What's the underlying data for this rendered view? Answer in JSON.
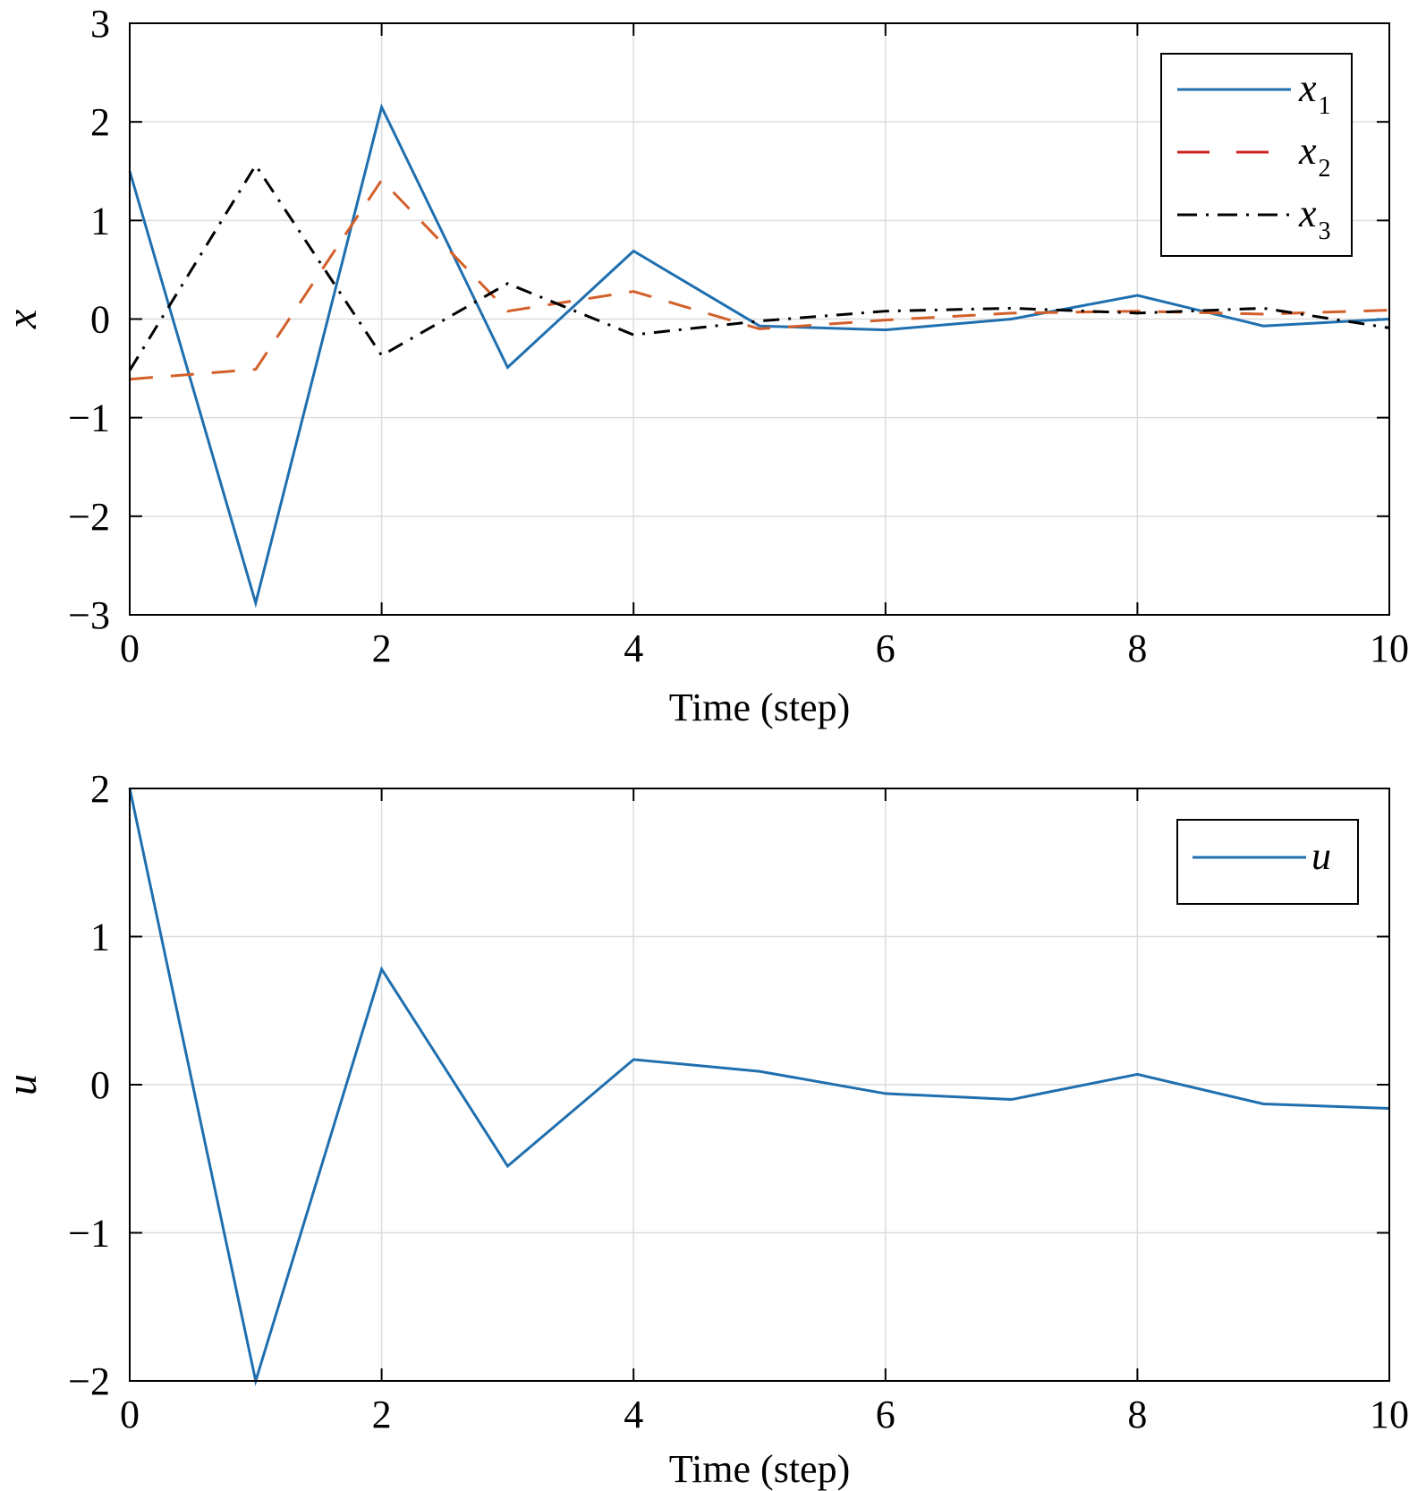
{
  "colors": {
    "x1": "#1f6faf",
    "x2": "#d35f2a",
    "x2_legend": "#cc2222",
    "x3": "#000000",
    "u": "#1f6faf",
    "grid": "#dcdcdc"
  },
  "chart_data": [
    {
      "type": "line",
      "xlabel": "Time (step)",
      "ylabel": "x",
      "xlim": [
        0,
        10
      ],
      "ylim": [
        -3,
        3
      ],
      "xticks": [
        0,
        2,
        4,
        6,
        8,
        10
      ],
      "yticks": [
        -3,
        -2,
        -1,
        0,
        1,
        2,
        3
      ],
      "ytick_labels": [
        "−3",
        "−2",
        "−1",
        "0",
        "1",
        "2",
        "3"
      ],
      "xtick_labels": [
        "0",
        "2",
        "4",
        "6",
        "8",
        "10"
      ],
      "grid": true,
      "legend_position": "top-right",
      "x": [
        0,
        1,
        2,
        3,
        4,
        5,
        6,
        7,
        8,
        9,
        10
      ],
      "series": [
        {
          "name": "x",
          "subscript": "1",
          "style": "solid",
          "color_key": "x1",
          "values": [
            1.5,
            -2.88,
            2.15,
            -0.49,
            0.69,
            -0.07,
            -0.11,
            0.0,
            0.24,
            -0.07,
            0.0
          ]
        },
        {
          "name": "x",
          "subscript": "2",
          "style": "dashed",
          "color_key": "x2",
          "values": [
            -0.61,
            -0.51,
            1.41,
            0.08,
            0.28,
            -0.1,
            -0.01,
            0.06,
            0.08,
            0.05,
            0.09
          ]
        },
        {
          "name": "x",
          "subscript": "3",
          "style": "dashdot",
          "color_key": "x3",
          "values": [
            -0.52,
            1.56,
            -0.37,
            0.36,
            -0.16,
            -0.02,
            0.08,
            0.11,
            0.06,
            0.11,
            -0.09
          ]
        }
      ]
    },
    {
      "type": "line",
      "xlabel": "Time (step)",
      "ylabel": "u",
      "xlim": [
        0,
        10
      ],
      "ylim": [
        -2,
        2
      ],
      "xticks": [
        0,
        2,
        4,
        6,
        8,
        10
      ],
      "yticks": [
        -2,
        -1,
        0,
        1,
        2
      ],
      "ytick_labels": [
        "−2",
        "−1",
        "0",
        "1",
        "2"
      ],
      "xtick_labels": [
        "0",
        "2",
        "4",
        "6",
        "8",
        "10"
      ],
      "grid": true,
      "legend_position": "top-right",
      "x": [
        0,
        1,
        2,
        3,
        4,
        5,
        6,
        7,
        8,
        9,
        10
      ],
      "series": [
        {
          "name": "u",
          "style": "solid",
          "color_key": "u",
          "values": [
            2.0,
            -2.0,
            0.78,
            -0.55,
            0.17,
            0.09,
            -0.06,
            -0.1,
            0.07,
            -0.13,
            -0.16
          ]
        }
      ]
    }
  ]
}
